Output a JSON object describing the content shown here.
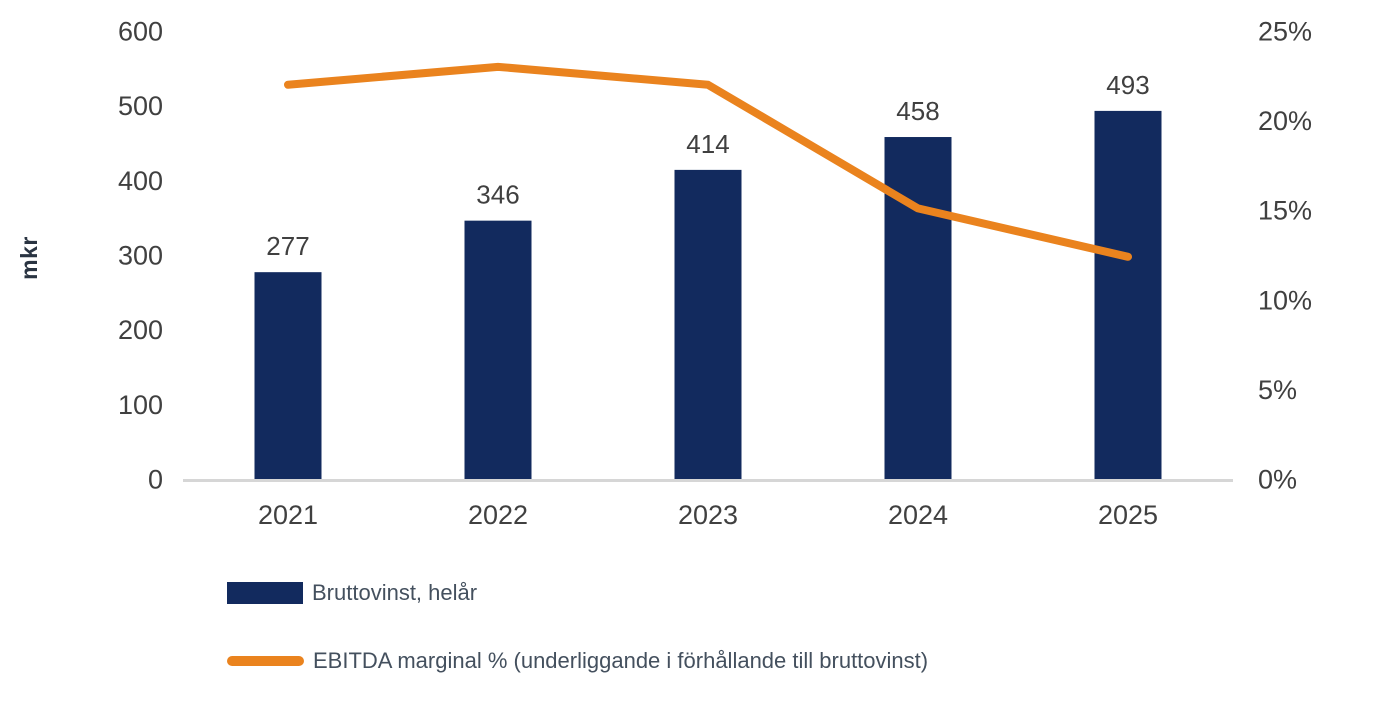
{
  "chart_data": {
    "type": "combo-bar-line",
    "categories": [
      "2021",
      "2022",
      "2023",
      "2024",
      "2025"
    ],
    "series": [
      {
        "name": "Bruttovinst, helår",
        "type": "bar",
        "axis": "left",
        "values": [
          277,
          346,
          414,
          458,
          493
        ],
        "data_labels": [
          "277",
          "346",
          "414",
          "458",
          "493"
        ],
        "color": "#122a5e"
      },
      {
        "name": "EBITDA marginal % (underliggande i förhållande till bruttovinst)",
        "type": "line",
        "axis": "right",
        "values": [
          22,
          23,
          22,
          15.1,
          12.4
        ],
        "color": "#ea831e"
      }
    ],
    "left_axis": {
      "title": "mkr",
      "ticks": [
        0,
        100,
        200,
        300,
        400,
        500,
        600
      ],
      "min": 0,
      "max": 600
    },
    "right_axis": {
      "ticks": [
        "0%",
        "5%",
        "10%",
        "15%",
        "20%",
        "25%"
      ],
      "tick_values": [
        0,
        5,
        10,
        15,
        20,
        25
      ],
      "min": 0,
      "max": 25
    },
    "grid": false,
    "legend_position": "bottom-left",
    "background": "#ffffff",
    "axis_line_color": "#d6d6d6",
    "tick_color": "#404040",
    "bar_label_color": "#404040"
  }
}
